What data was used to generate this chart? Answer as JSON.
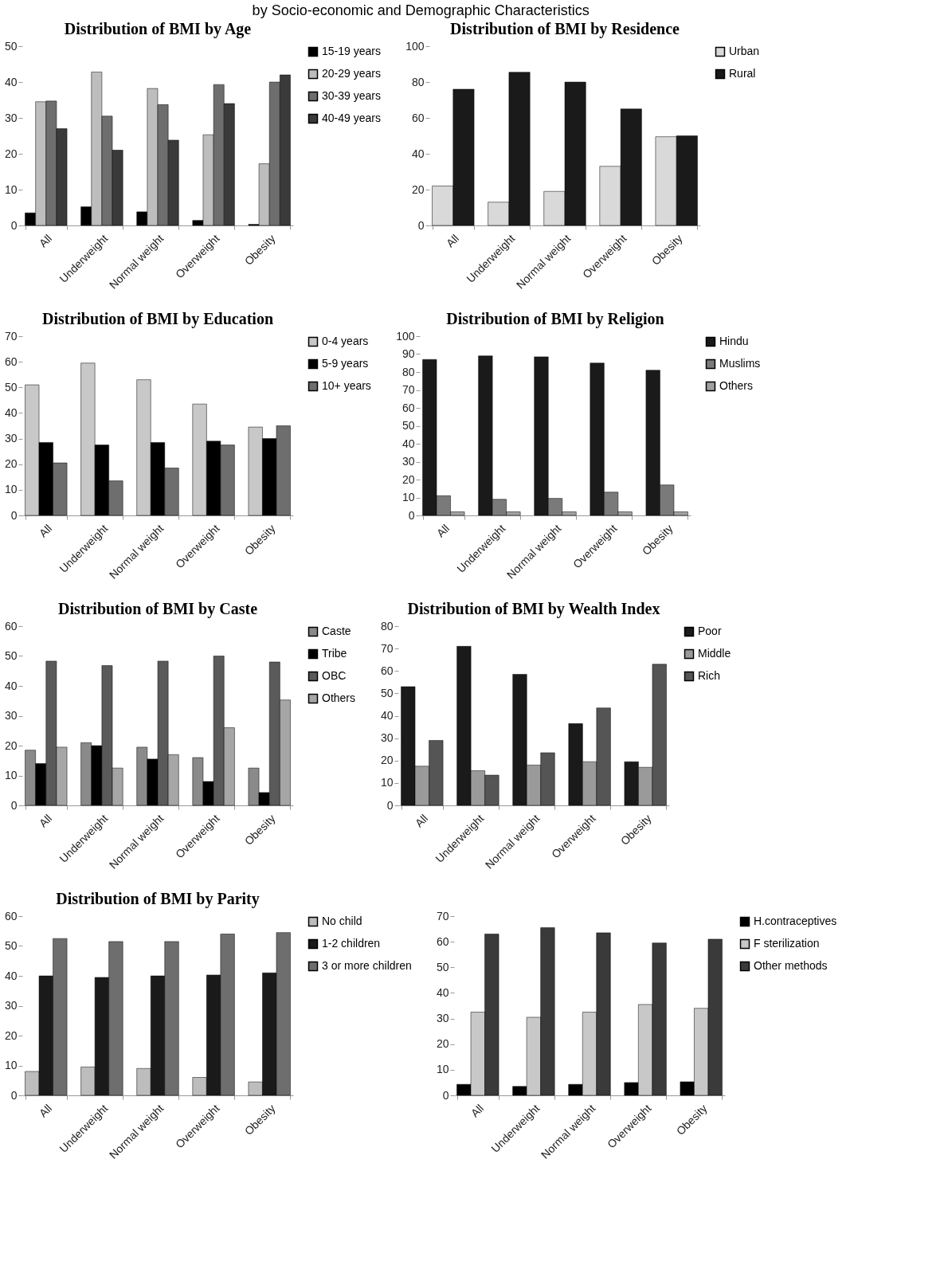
{
  "chart_data": [
    {
      "type": "bar",
      "title": "Distribution of BMI by Age",
      "annotations": [
        "by Socio-economic and Demographic Characteristics"
      ],
      "categories": [
        "All",
        "Underweight",
        "Normal weight",
        "Overweight",
        "Obesity"
      ],
      "ylim": [
        0,
        50
      ],
      "yticks": [
        0,
        10,
        20,
        30,
        40,
        50
      ],
      "legend": "right",
      "grid": false,
      "series": [
        {
          "name": "15-19 years",
          "color": "#000000",
          "values": [
            3.5,
            5.2,
            3.8,
            1.4,
            0.3
          ]
        },
        {
          "name": "20-29 years",
          "color": "#bdbdbd",
          "values": [
            34.5,
            42.8,
            38.2,
            25.3,
            17.2
          ]
        },
        {
          "name": "30-39 years",
          "color": "#6e6e6e",
          "values": [
            34.7,
            30.5,
            33.7,
            39.3,
            40
          ]
        },
        {
          "name": "40-49 years",
          "color": "#3a3a3a",
          "values": [
            27,
            21,
            23.8,
            34,
            42
          ]
        }
      ]
    },
    {
      "type": "bar",
      "title": "Distribution of BMI by Residence",
      "categories": [
        "All",
        "Underweight",
        "Normal weight",
        "Overweight",
        "Obesity"
      ],
      "ylim": [
        0,
        100
      ],
      "yticks": [
        0,
        20,
        40,
        60,
        80,
        100
      ],
      "legend": "right",
      "grid": false,
      "series": [
        {
          "name": "Urban",
          "color": "#d9d9d9",
          "values": [
            22,
            13,
            19,
            33,
            49.5
          ]
        },
        {
          "name": "Rural",
          "color": "#1a1a1a",
          "values": [
            76,
            85.5,
            80,
            65,
            50
          ]
        }
      ]
    },
    {
      "type": "bar",
      "title": "Distribution of BMI by Education",
      "categories": [
        "All",
        "Underweight",
        "Normal weight",
        "Overweight",
        "Obesity"
      ],
      "ylim": [
        0,
        70
      ],
      "yticks": [
        0,
        10,
        20,
        30,
        40,
        50,
        60,
        70
      ],
      "legend": "right",
      "grid": false,
      "series": [
        {
          "name": "0-4 years",
          "color": "#c8c8c8",
          "values": [
            51,
            59.5,
            53,
            43.5,
            34.5
          ]
        },
        {
          "name": "5-9 years",
          "color": "#000000",
          "values": [
            28.5,
            27.5,
            28.5,
            29,
            30
          ]
        },
        {
          "name": "10+ years",
          "color": "#6e6e6e",
          "values": [
            20.5,
            13.5,
            18.5,
            27.5,
            35
          ]
        }
      ]
    },
    {
      "type": "bar",
      "title": "Distribution of BMI by Religion",
      "categories": [
        "All",
        "Underweight",
        "Normal weight",
        "Overweight",
        "Obesity"
      ],
      "ylim": [
        0,
        100
      ],
      "yticks": [
        0,
        10,
        20,
        30,
        40,
        50,
        60,
        70,
        80,
        90,
        100
      ],
      "legend": "right",
      "grid": false,
      "series": [
        {
          "name": "Hindu",
          "color": "#1a1a1a",
          "values": [
            87,
            89,
            88.5,
            85,
            81
          ]
        },
        {
          "name": "Muslims",
          "color": "#7a7a7a",
          "values": [
            11,
            9,
            9.5,
            13,
            17
          ]
        },
        {
          "name": "Others",
          "color": "#a0a0a0",
          "values": [
            2,
            2,
            2,
            2,
            2
          ]
        }
      ]
    },
    {
      "type": "bar",
      "title": "Distribution of BMI by Caste",
      "categories": [
        "All",
        "Underweight",
        "Normal weight",
        "Overweight",
        "Obesity"
      ],
      "ylim": [
        0,
        60
      ],
      "yticks": [
        0,
        10,
        20,
        30,
        40,
        50,
        60
      ],
      "legend": "right",
      "grid": false,
      "series": [
        {
          "name": "Caste",
          "color": "#8a8a8a",
          "values": [
            18.5,
            21,
            19.5,
            16,
            12.5
          ]
        },
        {
          "name": "Tribe",
          "color": "#000000",
          "values": [
            14,
            20,
            15.5,
            8,
            4.3
          ]
        },
        {
          "name": "OBC",
          "color": "#5a5a5a",
          "values": [
            48.3,
            46.8,
            48.3,
            50,
            48
          ]
        },
        {
          "name": "Others",
          "color": "#a6a6a6",
          "values": [
            19.5,
            12.5,
            17,
            26,
            35.3
          ]
        }
      ]
    },
    {
      "type": "bar",
      "title": "Distribution of BMI by Wealth Index",
      "categories": [
        "All",
        "Underweight",
        "Normal weight",
        "Overweight",
        "Obesity"
      ],
      "ylim": [
        0,
        80
      ],
      "yticks": [
        0,
        10,
        20,
        30,
        40,
        50,
        60,
        70,
        80
      ],
      "legend": "right",
      "grid": false,
      "series": [
        {
          "name": "Poor",
          "color": "#1a1a1a",
          "values": [
            53,
            71,
            58.5,
            36.5,
            19.5
          ]
        },
        {
          "name": "Middle",
          "color": "#9a9a9a",
          "values": [
            17.5,
            15.5,
            18,
            19.5,
            17
          ]
        },
        {
          "name": "Rich",
          "color": "#555555",
          "values": [
            29,
            13.5,
            23.5,
            43.5,
            63
          ]
        }
      ]
    },
    {
      "type": "bar",
      "title": "Distribution of BMI by Parity",
      "categories": [
        "All",
        "Underweight",
        "Normal weight",
        "Overweight",
        "Obesity"
      ],
      "ylim": [
        0,
        60
      ],
      "yticks": [
        0,
        10,
        20,
        30,
        40,
        50,
        60
      ],
      "legend": "right",
      "grid": false,
      "series": [
        {
          "name": "No child",
          "color": "#bdbdbd",
          "values": [
            8,
            9.5,
            9,
            6,
            4.5
          ]
        },
        {
          "name": "1-2 children",
          "color": "#1a1a1a",
          "values": [
            40,
            39.5,
            40,
            40.3,
            41
          ]
        },
        {
          "name": "3 or more children",
          "color": "#6e6e6e",
          "values": [
            52.5,
            51.5,
            51.5,
            54,
            54.5
          ]
        }
      ]
    },
    {
      "type": "bar",
      "categories": [
        "All",
        "Underweight",
        "Normal weight",
        "Overweight",
        "Obesity"
      ],
      "ylim": [
        0,
        70
      ],
      "yticks": [
        0,
        10,
        20,
        30,
        40,
        50,
        60,
        70
      ],
      "legend": "right",
      "grid": false,
      "series": [
        {
          "name": "H.contraceptives",
          "color": "#000000",
          "values": [
            4.3,
            3.5,
            4.3,
            5,
            5.3
          ]
        },
        {
          "name": "F sterilization",
          "color": "#c8c8c8",
          "values": [
            32.5,
            30.5,
            32.5,
            35.5,
            34
          ]
        },
        {
          "name": "Other methods",
          "color": "#3a3a3a",
          "values": [
            63,
            65.5,
            63.5,
            59.5,
            61
          ]
        }
      ]
    }
  ]
}
